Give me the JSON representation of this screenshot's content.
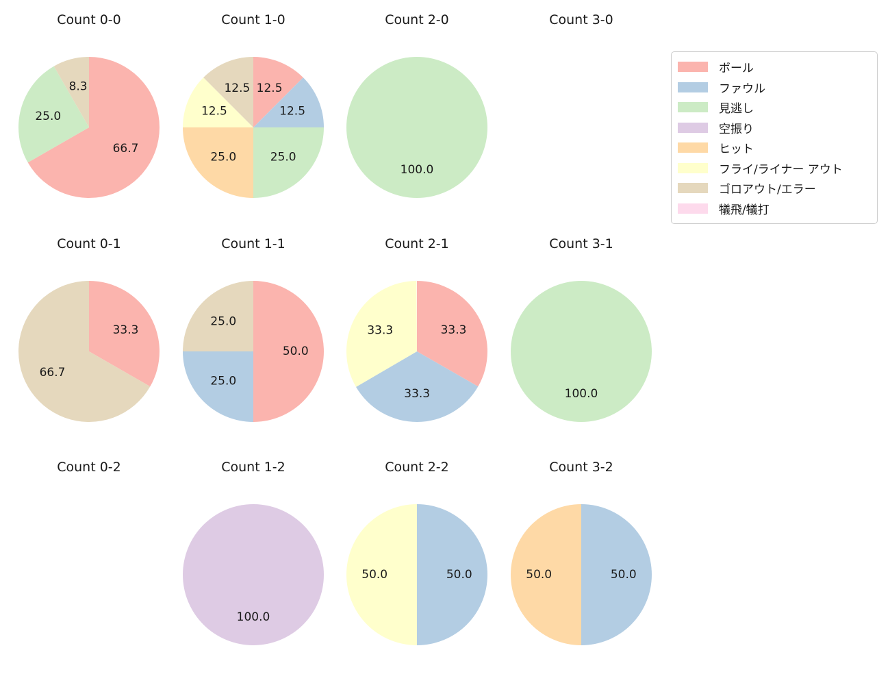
{
  "figure_background": "#ffffff",
  "text_color": "#1a1a1a",
  "palette": {
    "ボール": "#fbb4ae",
    "ファウル": "#b3cde3",
    "見逃し": "#ccebc5",
    "空振り": "#decbe4",
    "ヒット": "#fed9a6",
    "フライ/ライナー アウト": "#ffffcc",
    "ゴロアウト/エラー": "#e5d8bd",
    "犠飛/犠打": "#fddaec"
  },
  "legend": {
    "position": "top-right",
    "items": [
      "ボール",
      "ファウル",
      "見逃し",
      "空振り",
      "ヒット",
      "フライ/ライナー アウト",
      "ゴロアウト/エラー",
      "犠飛/犠打"
    ]
  },
  "chart_data": [
    {
      "type": "pie",
      "title": "Count 0-0",
      "start": "top",
      "direction": "clockwise",
      "slices": [
        {
          "category": "ボール",
          "value": 66.7,
          "pct_label": "66.7"
        },
        {
          "category": "見逃し",
          "value": 25.0,
          "pct_label": "25.0"
        },
        {
          "category": "ゴロアウト/エラー",
          "value": 8.3,
          "pct_label": "8.3"
        }
      ]
    },
    {
      "type": "pie",
      "title": "Count 1-0",
      "start": "top",
      "direction": "clockwise",
      "slices": [
        {
          "category": "ボール",
          "value": 12.5,
          "pct_label": "12.5"
        },
        {
          "category": "ファウル",
          "value": 12.5,
          "pct_label": "12.5"
        },
        {
          "category": "見逃し",
          "value": 25.0,
          "pct_label": "25.0"
        },
        {
          "category": "ヒット",
          "value": 25.0,
          "pct_label": "25.0"
        },
        {
          "category": "フライ/ライナー アウト",
          "value": 12.5,
          "pct_label": "12.5"
        },
        {
          "category": "ゴロアウト/エラー",
          "value": 12.5,
          "pct_label": "12.5"
        }
      ]
    },
    {
      "type": "pie",
      "title": "Count 2-0",
      "start": "top",
      "direction": "clockwise",
      "slices": [
        {
          "category": "見逃し",
          "value": 100.0,
          "pct_label": "100.0"
        }
      ]
    },
    {
      "type": "pie",
      "title": "Count 3-0",
      "start": "top",
      "direction": "clockwise",
      "slices": []
    },
    {
      "type": "pie",
      "title": "Count 0-1",
      "start": "top",
      "direction": "clockwise",
      "slices": [
        {
          "category": "ボール",
          "value": 33.3,
          "pct_label": "33.3"
        },
        {
          "category": "ゴロアウト/エラー",
          "value": 66.7,
          "pct_label": "66.7"
        }
      ]
    },
    {
      "type": "pie",
      "title": "Count 1-1",
      "start": "top",
      "direction": "clockwise",
      "slices": [
        {
          "category": "ボール",
          "value": 50.0,
          "pct_label": "50.0"
        },
        {
          "category": "ファウル",
          "value": 25.0,
          "pct_label": "25.0"
        },
        {
          "category": "ゴロアウト/エラー",
          "value": 25.0,
          "pct_label": "25.0"
        }
      ]
    },
    {
      "type": "pie",
      "title": "Count 2-1",
      "start": "top",
      "direction": "clockwise",
      "slices": [
        {
          "category": "ボール",
          "value": 33.3,
          "pct_label": "33.3"
        },
        {
          "category": "ファウル",
          "value": 33.3,
          "pct_label": "33.3"
        },
        {
          "category": "フライ/ライナー アウト",
          "value": 33.3,
          "pct_label": "33.3"
        }
      ]
    },
    {
      "type": "pie",
      "title": "Count 3-1",
      "start": "top",
      "direction": "clockwise",
      "slices": [
        {
          "category": "見逃し",
          "value": 100.0,
          "pct_label": "100.0"
        }
      ]
    },
    {
      "type": "pie",
      "title": "Count 0-2",
      "start": "top",
      "direction": "clockwise",
      "slices": []
    },
    {
      "type": "pie",
      "title": "Count 1-2",
      "start": "top",
      "direction": "clockwise",
      "slices": [
        {
          "category": "空振り",
          "value": 100.0,
          "pct_label": "100.0"
        }
      ]
    },
    {
      "type": "pie",
      "title": "Count 2-2",
      "start": "top",
      "direction": "clockwise",
      "slices": [
        {
          "category": "ファウル",
          "value": 50.0,
          "pct_label": "50.0"
        },
        {
          "category": "フライ/ライナー アウト",
          "value": 50.0,
          "pct_label": "50.0"
        }
      ]
    },
    {
      "type": "pie",
      "title": "Count 3-2",
      "start": "top",
      "direction": "clockwise",
      "slices": [
        {
          "category": "ファウル",
          "value": 50.0,
          "pct_label": "50.0"
        },
        {
          "category": "ヒット",
          "value": 50.0,
          "pct_label": "50.0"
        }
      ]
    }
  ]
}
